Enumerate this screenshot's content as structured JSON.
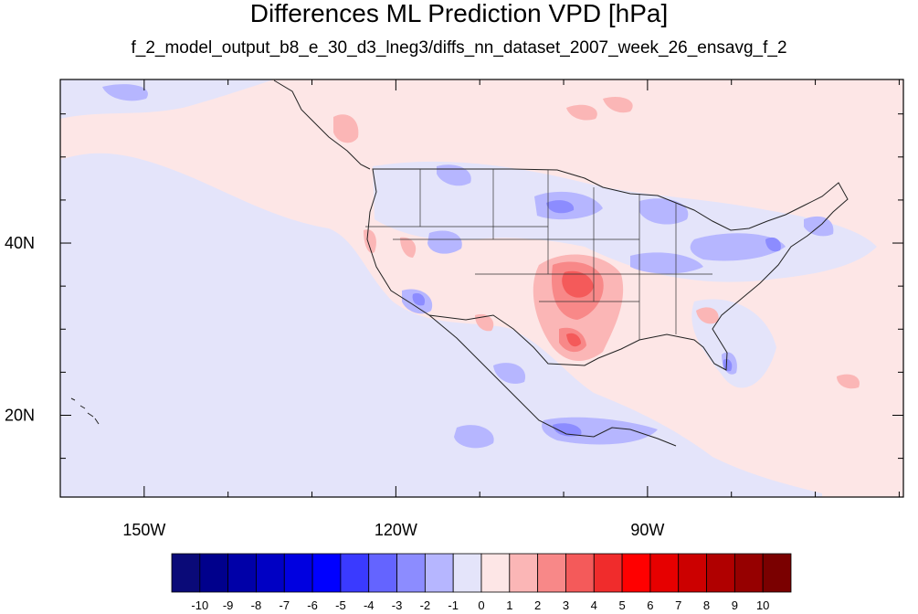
{
  "title": "Differences ML Prediction VPD [hPa]",
  "subtitle": "f_2_model_output_b8_e_30_d3_lneg3/diffs_nn_dataset_2007_week_26_ensavg_f_2",
  "map": {
    "lon_range": [
      -160,
      -59.5
    ],
    "lat_range": [
      10.5,
      59
    ],
    "lon_ticks": [
      {
        "value": -150,
        "label": "150W"
      },
      {
        "value": -120,
        "label": "120W"
      },
      {
        "value": -90,
        "label": "90W"
      }
    ],
    "lat_ticks": [
      {
        "value": 40,
        "label": "40N"
      },
      {
        "value": 20,
        "label": "20N"
      }
    ],
    "background_color": "#fde6e6"
  },
  "colorbar": {
    "labels": [
      "-10",
      "-9",
      "-8",
      "-7",
      "-6",
      "-5",
      "-4",
      "-3",
      "-2",
      "-1",
      "0",
      "1",
      "2",
      "3",
      "4",
      "5",
      "6",
      "7",
      "8",
      "9",
      "10"
    ],
    "colors": [
      "#0a0a78",
      "#00008c",
      "#0000a8",
      "#0000c4",
      "#0000e0",
      "#0000ff",
      "#3a3aff",
      "#6464ff",
      "#8c8cff",
      "#b6b6ff",
      "#e4e4fa",
      "#fde6e6",
      "#fbb6b6",
      "#f88888",
      "#f45a5a",
      "#f02c2c",
      "#ff0000",
      "#e60000",
      "#cc0000",
      "#b00000",
      "#960000",
      "#7a0000"
    ]
  }
}
